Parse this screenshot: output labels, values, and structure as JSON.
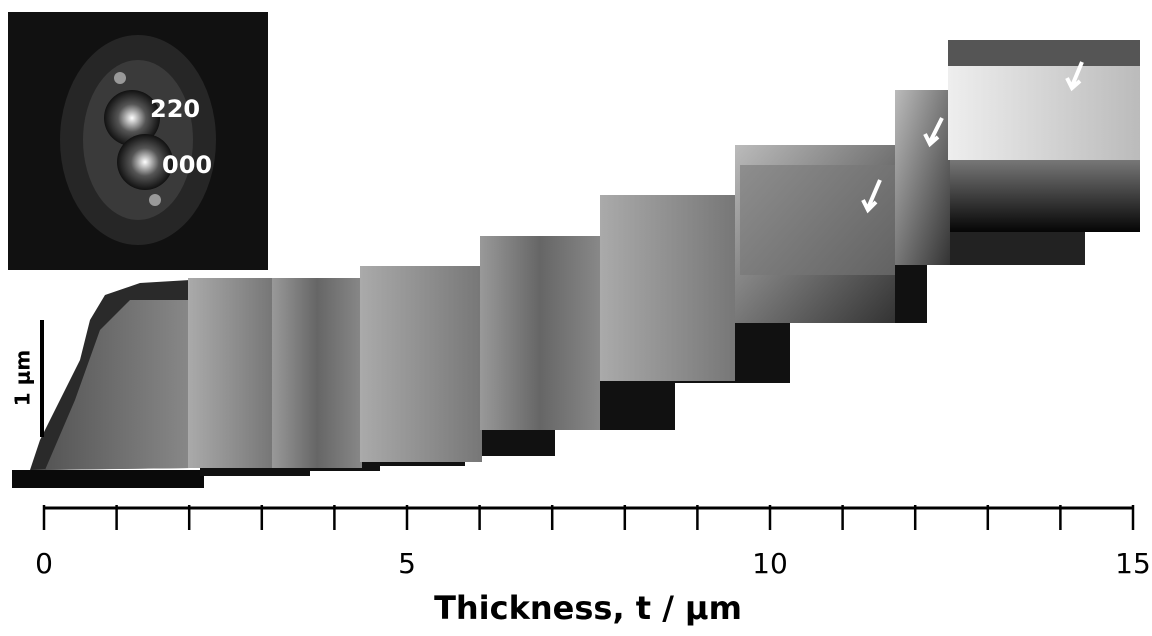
{
  "figure": {
    "inset_labels": [
      "220",
      "000"
    ],
    "scale_bar_label": "1 μm",
    "axis": {
      "title": "Thickness, t / μm",
      "xlim": [
        0,
        15
      ],
      "major_ticks": [
        0,
        5,
        10,
        15
      ],
      "minor_ticks": [
        1,
        2,
        3,
        4,
        6,
        7,
        8,
        9,
        11,
        12,
        13,
        14
      ]
    }
  }
}
